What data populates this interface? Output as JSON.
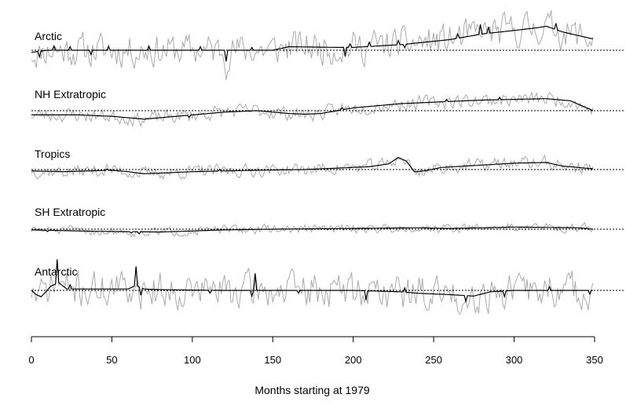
{
  "chart_data": {
    "type": "line",
    "xlabel": "Months starting at 1979",
    "xlim": [
      0,
      350
    ],
    "x_ticks": [
      0,
      50,
      100,
      150,
      200,
      250,
      300,
      350
    ],
    "reference_line": "dotted horizontal zero line in each panel",
    "series_styles": {
      "raw": "#aaaaaa",
      "smoothed": "#000000"
    },
    "panels": [
      {
        "label": "Arctic",
        "smooth_knots": [
          [
            0,
            -0.3
          ],
          [
            10,
            0
          ],
          [
            20,
            0
          ],
          [
            30,
            0
          ],
          [
            60,
            0
          ],
          [
            100,
            0
          ],
          [
            120,
            0
          ],
          [
            150,
            0
          ],
          [
            160,
            0.5
          ],
          [
            190,
            0.4
          ],
          [
            200,
            0.4
          ],
          [
            215,
            0.6
          ],
          [
            230,
            0.8
          ],
          [
            260,
            1.5
          ],
          [
            280,
            2.3
          ],
          [
            300,
            2.8
          ],
          [
            315,
            3.2
          ],
          [
            320,
            3.4
          ],
          [
            330,
            2.6
          ],
          [
            349,
            1.6
          ]
        ],
        "smooth_spikes": [
          [
            5,
            -0.8
          ],
          [
            14,
            0.6
          ],
          [
            24,
            0.5
          ],
          [
            37,
            -0.6
          ],
          [
            48,
            0.5
          ],
          [
            73,
            0.6
          ],
          [
            105,
            0.5
          ],
          [
            121,
            -1.6
          ],
          [
            137,
            0.4
          ],
          [
            195,
            -1.3
          ],
          [
            198,
            0.5
          ],
          [
            210,
            0.6
          ],
          [
            228,
            0.6
          ],
          [
            232,
            -0.5
          ],
          [
            265,
            0.6
          ],
          [
            279,
            1.4
          ],
          [
            284,
            0.9
          ],
          [
            326,
            0.9
          ]
        ],
        "raw_seed": 11,
        "raw_amp": 1.3
      },
      {
        "label": "NH Extratropic",
        "smooth_knots": [
          [
            0,
            -0.6
          ],
          [
            30,
            -0.6
          ],
          [
            50,
            -0.8
          ],
          [
            70,
            -1.2
          ],
          [
            80,
            -1.0
          ],
          [
            100,
            -0.6
          ],
          [
            120,
            -0.2
          ],
          [
            140,
            0.0
          ],
          [
            160,
            -0.4
          ],
          [
            170,
            -0.5
          ],
          [
            180,
            -0.4
          ],
          [
            200,
            0.4
          ],
          [
            230,
            1.0
          ],
          [
            260,
            1.3
          ],
          [
            280,
            1.5
          ],
          [
            300,
            1.6
          ],
          [
            320,
            1.7
          ],
          [
            335,
            1.4
          ],
          [
            349,
            0.0
          ]
        ],
        "smooth_spikes": [
          [
            98,
            -0.3
          ],
          [
            193,
            0.3
          ],
          [
            258,
            0.3
          ],
          [
            291,
            0.3
          ]
        ],
        "raw_seed": 23,
        "raw_amp": 0.55
      },
      {
        "label": "Tropics",
        "smooth_knots": [
          [
            0,
            -0.2
          ],
          [
            20,
            -0.3
          ],
          [
            50,
            -0.1
          ],
          [
            60,
            -0.3
          ],
          [
            70,
            -0.6
          ],
          [
            80,
            -0.5
          ],
          [
            100,
            -0.3
          ],
          [
            140,
            -0.1
          ],
          [
            170,
            0.0
          ],
          [
            190,
            0.2
          ],
          [
            210,
            0.4
          ],
          [
            222,
            0.8
          ],
          [
            228,
            1.7
          ],
          [
            233,
            1.2
          ],
          [
            238,
            -0.3
          ],
          [
            244,
            -0.2
          ],
          [
            255,
            0.3
          ],
          [
            270,
            0.5
          ],
          [
            300,
            0.9
          ],
          [
            320,
            1.0
          ],
          [
            330,
            0.5
          ],
          [
            349,
            0.1
          ]
        ],
        "smooth_spikes": [
          [
            47,
            0.2
          ],
          [
            117,
            0.2
          ]
        ],
        "raw_seed": 37,
        "raw_amp": 0.5
      },
      {
        "label": "SH Extratropic",
        "smooth_knots": [
          [
            0,
            -0.1
          ],
          [
            40,
            -0.3
          ],
          [
            80,
            -0.4
          ],
          [
            120,
            -0.1
          ],
          [
            150,
            0.0
          ],
          [
            200,
            0.1
          ],
          [
            240,
            0.2
          ],
          [
            260,
            0.1
          ],
          [
            300,
            0.3
          ],
          [
            340,
            0.2
          ],
          [
            349,
            0.0
          ]
        ],
        "smooth_spikes": [
          [
            10,
            -0.2
          ],
          [
            62,
            -0.2
          ],
          [
            67,
            -0.3
          ]
        ],
        "raw_seed": 51,
        "raw_amp": 0.35
      },
      {
        "label": "Antarctic",
        "smooth_knots": [
          [
            0,
            0.0
          ],
          [
            3,
            -0.6
          ],
          [
            6,
            -0.9
          ],
          [
            9,
            -0.2
          ],
          [
            12,
            0.6
          ],
          [
            17,
            1.1
          ],
          [
            22,
            0.2
          ],
          [
            40,
            0.2
          ],
          [
            60,
            0.2
          ],
          [
            65,
            0.7
          ],
          [
            70,
            0.2
          ],
          [
            80,
            0.1
          ],
          [
            120,
            0.0
          ],
          [
            160,
            0.0
          ],
          [
            200,
            0.0
          ],
          [
            230,
            -0.2
          ],
          [
            240,
            -0.4
          ],
          [
            260,
            -0.6
          ],
          [
            275,
            -0.8
          ],
          [
            285,
            -0.2
          ],
          [
            300,
            0.0
          ],
          [
            349,
            0.0
          ]
        ],
        "smooth_spikes": [
          [
            16,
            3.4
          ],
          [
            24,
            0.6
          ],
          [
            65,
            2.7
          ],
          [
            68,
            -1.1
          ],
          [
            111,
            -0.4
          ],
          [
            137,
            -0.8
          ],
          [
            139,
            2.4
          ],
          [
            166,
            -0.4
          ],
          [
            208,
            -1.3
          ],
          [
            232,
            0.6
          ],
          [
            270,
            -0.8
          ],
          [
            294,
            -0.8
          ],
          [
            322,
            0.5
          ],
          [
            347,
            -0.5
          ]
        ],
        "raw_seed": 71,
        "raw_amp": 1.4
      }
    ]
  }
}
